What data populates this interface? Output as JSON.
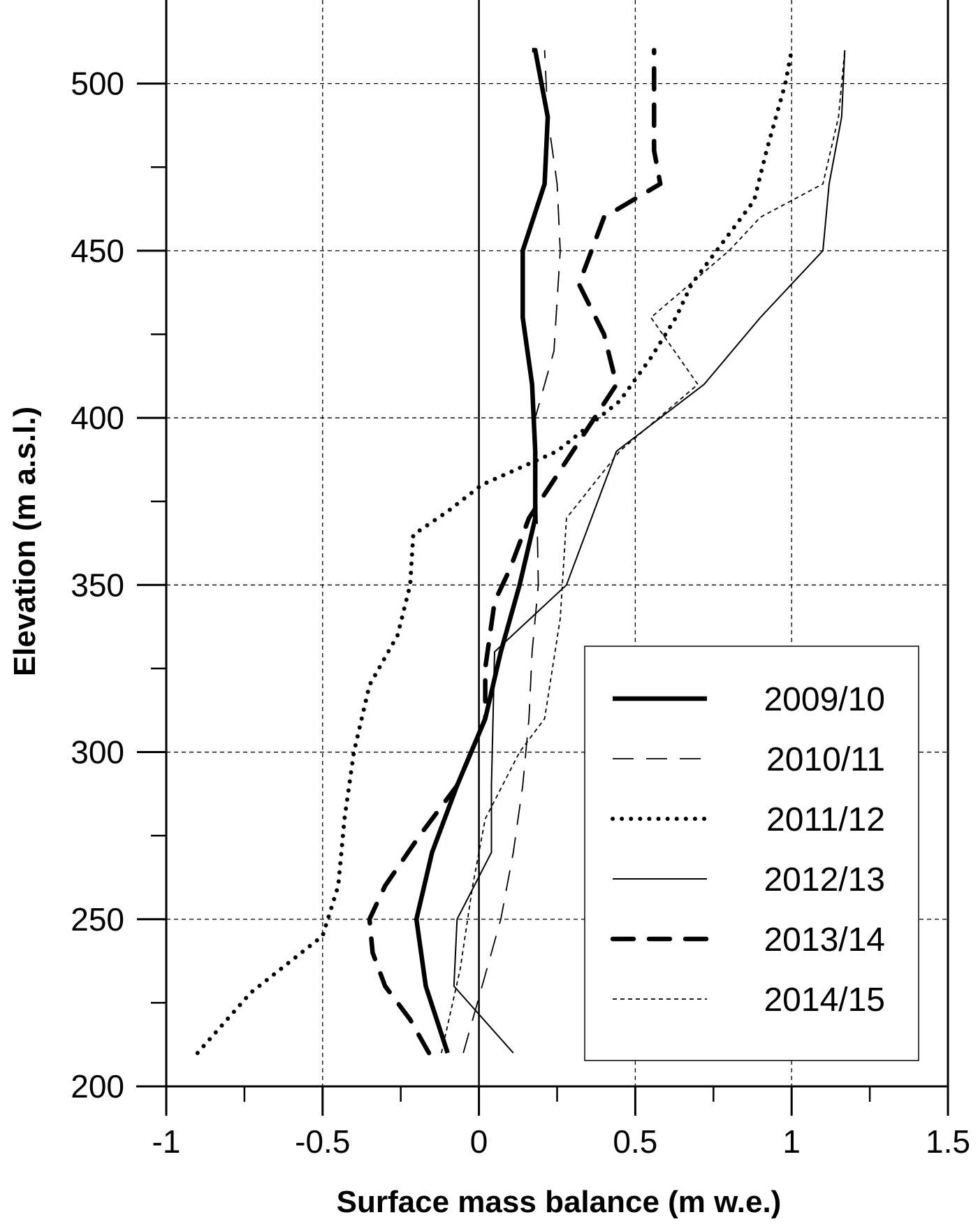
{
  "chart_data": {
    "type": "line",
    "xlabel": "Surface mass balance (m w.e.)",
    "ylabel": "Elevation (m a.s.l.)",
    "xlim": [
      -1,
      1.5
    ],
    "ylim": [
      200,
      525
    ],
    "xticks": [
      -1,
      -0.5,
      0,
      0.5,
      1,
      1.5
    ],
    "xtick_labels": [
      "-1",
      "-0.5",
      "0",
      "0.5",
      "1",
      "1.5"
    ],
    "yticks": [
      200,
      250,
      300,
      350,
      400,
      450,
      500
    ],
    "ytick_labels": [
      "200",
      "250",
      "300",
      "350",
      "400",
      "450",
      "500"
    ],
    "grid": true,
    "legend_position": "bottom-right",
    "series": [
      {
        "name": "2009/10",
        "style": "thick-solid",
        "x": [
          -0.1,
          -0.17,
          -0.2,
          -0.15,
          -0.07,
          0.02,
          0.07,
          0.13,
          0.18,
          0.18,
          0.17,
          0.14,
          0.14,
          0.21,
          0.22,
          0.18,
          0.17
        ],
        "y": [
          210,
          230,
          250,
          270,
          290,
          310,
          330,
          350,
          370,
          390,
          410,
          430,
          450,
          470,
          490,
          510,
          510
        ]
      },
      {
        "name": "2010/11",
        "style": "long-dash",
        "x": [
          -0.05,
          0.01,
          0.07,
          0.11,
          0.14,
          0.16,
          0.17,
          0.19,
          0.18,
          0.24,
          0.26,
          0.25,
          0.22,
          0.21
        ],
        "y": [
          210,
          230,
          250,
          270,
          290,
          310,
          330,
          350,
          400,
          420,
          450,
          470,
          490,
          510
        ]
      },
      {
        "name": "2011/12",
        "style": "dotted",
        "x": [
          -0.9,
          -0.73,
          -0.5,
          -0.45,
          -0.43,
          -0.4,
          -0.35,
          -0.26,
          -0.22,
          -0.21,
          -0.1,
          0.01,
          0.25,
          0.45,
          0.55,
          0.63,
          0.68,
          0.76,
          0.88,
          0.92,
          0.98,
          1.0
        ],
        "y": [
          210,
          228,
          245,
          260,
          280,
          300,
          320,
          335,
          350,
          365,
          372,
          380,
          390,
          405,
          418,
          430,
          440,
          450,
          465,
          480,
          500,
          510
        ]
      },
      {
        "name": "2012/13",
        "style": "thin-solid",
        "x": [
          0.11,
          -0.08,
          -0.07,
          0.04,
          0.04,
          0.05,
          0.28,
          0.44,
          0.72,
          0.9,
          1.1,
          1.12,
          1.16,
          1.17
        ],
        "y": [
          210,
          230,
          250,
          270,
          290,
          330,
          350,
          390,
          410,
          430,
          450,
          470,
          490,
          510
        ]
      },
      {
        "name": "2013/14",
        "style": "thick-dash",
        "x": [
          -0.16,
          -0.22,
          -0.3,
          -0.34,
          -0.35,
          -0.3,
          -0.19,
          -0.07,
          0.02,
          0.02,
          0.05,
          0.1,
          0.16,
          0.3,
          0.44,
          0.4,
          0.32,
          0.4,
          0.58,
          0.56,
          0.56,
          0.56
        ],
        "y": [
          210,
          220,
          230,
          240,
          250,
          260,
          275,
          290,
          310,
          325,
          345,
          355,
          370,
          390,
          410,
          425,
          440,
          460,
          470,
          480,
          500,
          510
        ]
      },
      {
        "name": "2014/15",
        "style": "short-dot",
        "x": [
          -0.12,
          -0.06,
          -0.02,
          0.02,
          0.13,
          0.21,
          0.26,
          0.28,
          0.45,
          0.7,
          0.55,
          0.8,
          0.9,
          1.1,
          1.15,
          1.17
        ],
        "y": [
          210,
          235,
          260,
          280,
          300,
          310,
          340,
          370,
          390,
          410,
          430,
          450,
          460,
          470,
          490,
          510
        ]
      }
    ]
  }
}
